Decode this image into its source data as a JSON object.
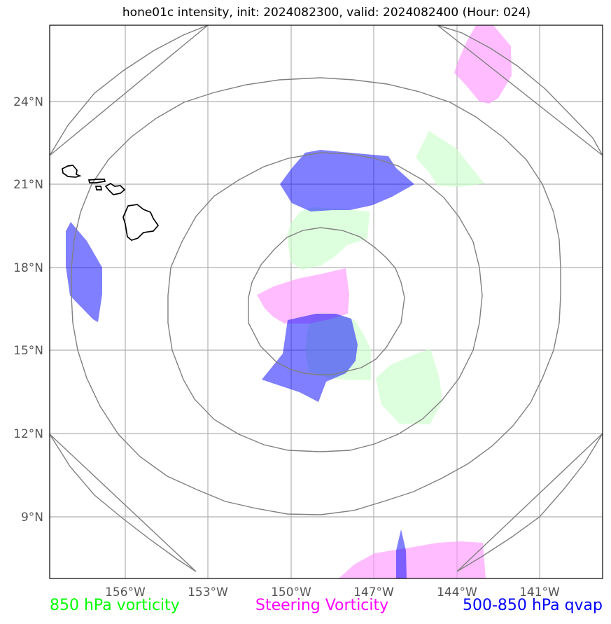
{
  "title": "hone01c intensity, init: 2024082300, valid: 2024082400 (Hour: 024)",
  "lat_ticks": [
    "24°N",
    "21°N",
    "18°N",
    "15°N",
    "12°N",
    "9°N"
  ],
  "lon_ticks": [
    "156°W",
    "153°W",
    "150°W",
    "147°W",
    "144°W",
    "141°W"
  ],
  "legend": [
    {
      "label": "850 hPa vorticity",
      "color": "#00ff00"
    },
    {
      "label": "Steering Vorticity",
      "color": "#ff00ff"
    },
    {
      "label": "500-850 hPa qvap",
      "color": "#0000ff"
    }
  ],
  "colors": {
    "vorticity_850": "#ccffcc",
    "steering_vorticity": "#ff99ff",
    "qvap_500_850": "#0000ff",
    "range_rings": "#808080",
    "gridlines": "#b0b0b0",
    "coastline": "#000000"
  }
}
